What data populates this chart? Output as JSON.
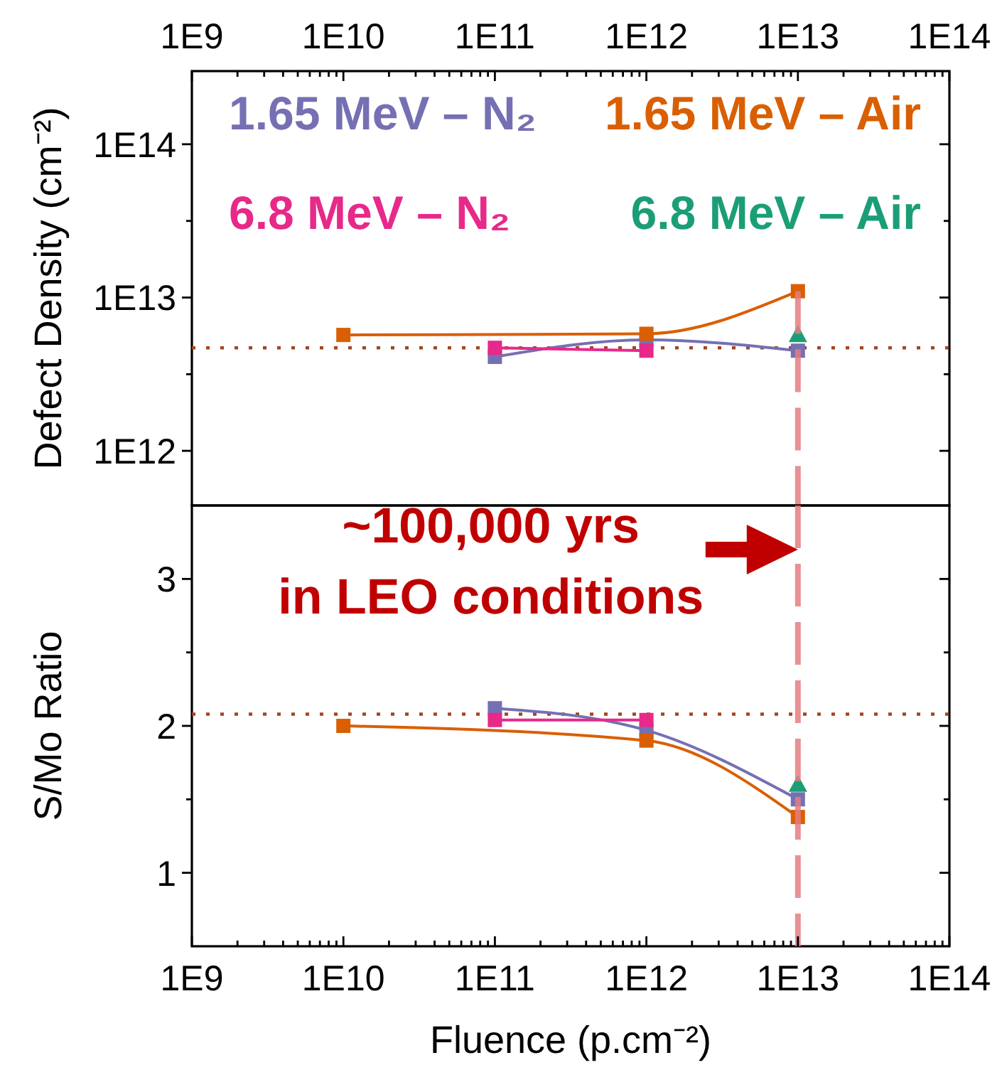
{
  "chart_data": [
    {
      "type": "line",
      "ylabel": "Defect Density (cm⁻²)",
      "log": "xy",
      "xlim": [
        1000000000.0,
        100000000000000.0
      ],
      "xticks": [
        {
          "value": 1000000000.0,
          "label": "1E9"
        },
        {
          "value": 2000000000.0,
          "label": null
        },
        {
          "value": 3000000000.0,
          "label": null
        },
        {
          "value": 4000000000.0,
          "label": null
        },
        {
          "value": 5000000000.0,
          "label": null
        },
        {
          "value": 6000000000.0,
          "label": null
        },
        {
          "value": 7000000000.0,
          "label": null
        },
        {
          "value": 8000000000.0,
          "label": null
        },
        {
          "value": 9000000000.0,
          "label": null
        },
        {
          "value": 10000000000.0,
          "label": "1E10"
        },
        {
          "value": 20000000000.0,
          "label": null
        },
        {
          "value": 30000000000.0,
          "label": null
        },
        {
          "value": 40000000000.0,
          "label": null
        },
        {
          "value": 50000000000.0,
          "label": null
        },
        {
          "value": 60000000000.0,
          "label": null
        },
        {
          "value": 70000000000.0,
          "label": null
        },
        {
          "value": 80000000000.0,
          "label": null
        },
        {
          "value": 90000000000.0,
          "label": null
        },
        {
          "value": 100000000000.0,
          "label": "1E11"
        },
        {
          "value": 200000000000.0,
          "label": null
        },
        {
          "value": 300000000000.0,
          "label": null
        },
        {
          "value": 400000000000.0,
          "label": null
        },
        {
          "value": 500000000000.0,
          "label": null
        },
        {
          "value": 600000000000.0,
          "label": null
        },
        {
          "value": 700000000000.0,
          "label": null
        },
        {
          "value": 800000000000.0,
          "label": null
        },
        {
          "value": 900000000000.0,
          "label": null
        },
        {
          "value": 1000000000000.0,
          "label": "1E12"
        },
        {
          "value": 2000000000000.0,
          "label": null
        },
        {
          "value": 3000000000000.0,
          "label": null
        },
        {
          "value": 4000000000000.0,
          "label": null
        },
        {
          "value": 5000000000000.0,
          "label": null
        },
        {
          "value": 6000000000000.0,
          "label": null
        },
        {
          "value": 7000000000000.0,
          "label": null
        },
        {
          "value": 8000000000000.0,
          "label": null
        },
        {
          "value": 9000000000000.0,
          "label": null
        },
        {
          "value": 10000000000000.0,
          "label": "1E13"
        },
        {
          "value": 20000000000000.0,
          "label": null
        },
        {
          "value": 30000000000000.0,
          "label": null
        },
        {
          "value": 40000000000000.0,
          "label": null
        },
        {
          "value": 50000000000000.0,
          "label": null
        },
        {
          "value": 60000000000000.0,
          "label": null
        },
        {
          "value": 70000000000000.0,
          "label": null
        },
        {
          "value": 80000000000000.0,
          "label": null
        },
        {
          "value": 90000000000000.0,
          "label": null
        },
        {
          "value": 100000000000000.0,
          "label": "1E14"
        }
      ],
      "ylim": [
        440000000000.0,
        300000000000000.0
      ],
      "yticks": [
        {
          "value": 1000000000000.0,
          "label": "1E12"
        },
        {
          "value": 3160000000000.0,
          "label": null
        },
        {
          "value": 10000000000000.0,
          "label": "1E13"
        },
        {
          "value": 31600000000000.0,
          "label": null
        },
        {
          "value": 100000000000000.0,
          "label": "1E14"
        }
      ],
      "legend": "top",
      "marker": "square",
      "series": [
        {
          "name": "1.65 MeV – N₂",
          "color": "#7570b3",
          "x": [
            100000000000.0,
            1000000000000.0,
            10000000000000.0
          ],
          "values": [
            4100000000000.0,
            5300000000000.0,
            4500000000000.0
          ]
        },
        {
          "name": "1.65 MeV – Air",
          "color": "#d95f02",
          "x": [
            10000000000.0,
            1000000000000.0,
            10000000000000.0
          ],
          "values": [
            5700000000000.0,
            5800000000000.0,
            11000000000000.0
          ]
        },
        {
          "name": "6.8 MeV – N₂",
          "color": "#e7298a",
          "x": [
            100000000000.0,
            1000000000000.0
          ],
          "values": [
            4700000000000.0,
            4500000000000.0
          ]
        },
        {
          "name": "6.8 MeV – Air",
          "color": "#1b9e77",
          "type": "scatter",
          "marker": "triangle",
          "x": [
            10000000000000.0
          ],
          "values": [
            5700000000000.0
          ]
        }
      ],
      "ref_lines": [
        {
          "axis": "y",
          "value": 4700000000000.0,
          "color": "#a0461e",
          "line_style": "dotted"
        },
        {
          "axis": "x",
          "value": 10000000000000.0,
          "color": "#e47c80",
          "line_style": "dashed"
        }
      ]
    },
    {
      "type": "line",
      "ylabel": "S/Mo Ratio",
      "xlabel": "Fluence (p.cm⁻²)",
      "log": "x",
      "xlim": [
        1000000000.0,
        100000000000000.0
      ],
      "xticks": [
        {
          "value": 1000000000.0,
          "label": "1E9"
        },
        {
          "value": 2000000000.0,
          "label": null
        },
        {
          "value": 3000000000.0,
          "label": null
        },
        {
          "value": 4000000000.0,
          "label": null
        },
        {
          "value": 5000000000.0,
          "label": null
        },
        {
          "value": 6000000000.0,
          "label": null
        },
        {
          "value": 7000000000.0,
          "label": null
        },
        {
          "value": 8000000000.0,
          "label": null
        },
        {
          "value": 9000000000.0,
          "label": null
        },
        {
          "value": 10000000000.0,
          "label": "1E10"
        },
        {
          "value": 20000000000.0,
          "label": null
        },
        {
          "value": 30000000000.0,
          "label": null
        },
        {
          "value": 40000000000.0,
          "label": null
        },
        {
          "value": 50000000000.0,
          "label": null
        },
        {
          "value": 60000000000.0,
          "label": null
        },
        {
          "value": 70000000000.0,
          "label": null
        },
        {
          "value": 80000000000.0,
          "label": null
        },
        {
          "value": 90000000000.0,
          "label": null
        },
        {
          "value": 100000000000.0,
          "label": "1E11"
        },
        {
          "value": 200000000000.0,
          "label": null
        },
        {
          "value": 300000000000.0,
          "label": null
        },
        {
          "value": 400000000000.0,
          "label": null
        },
        {
          "value": 500000000000.0,
          "label": null
        },
        {
          "value": 600000000000.0,
          "label": null
        },
        {
          "value": 700000000000.0,
          "label": null
        },
        {
          "value": 800000000000.0,
          "label": null
        },
        {
          "value": 900000000000.0,
          "label": null
        },
        {
          "value": 1000000000000.0,
          "label": "1E12"
        },
        {
          "value": 2000000000000.0,
          "label": null
        },
        {
          "value": 3000000000000.0,
          "label": null
        },
        {
          "value": 4000000000000.0,
          "label": null
        },
        {
          "value": 5000000000000.0,
          "label": null
        },
        {
          "value": 6000000000000.0,
          "label": null
        },
        {
          "value": 7000000000000.0,
          "label": null
        },
        {
          "value": 8000000000000.0,
          "label": null
        },
        {
          "value": 9000000000000.0,
          "label": null
        },
        {
          "value": 10000000000000.0,
          "label": "1E13"
        },
        {
          "value": 20000000000000.0,
          "label": null
        },
        {
          "value": 30000000000000.0,
          "label": null
        },
        {
          "value": 40000000000000.0,
          "label": null
        },
        {
          "value": 50000000000000.0,
          "label": null
        },
        {
          "value": 60000000000000.0,
          "label": null
        },
        {
          "value": 70000000000000.0,
          "label": null
        },
        {
          "value": 80000000000000.0,
          "label": null
        },
        {
          "value": 90000000000000.0,
          "label": null
        },
        {
          "value": 100000000000000.0,
          "label": "1E14"
        }
      ],
      "ylim": [
        0.5,
        3.5
      ],
      "yticks": [
        1,
        {
          "value": 1.5,
          "label": null
        },
        2,
        {
          "value": 2.5,
          "label": null
        },
        3
      ],
      "marker": "square",
      "series": [
        {
          "color": "#7570b3",
          "x": [
            100000000000.0,
            1000000000000.0,
            10000000000000.0
          ],
          "values": [
            2.12,
            1.97,
            1.5
          ]
        },
        {
          "color": "#d95f02",
          "x": [
            10000000000.0,
            1000000000000.0,
            10000000000000.0
          ],
          "values": [
            2.0,
            1.9,
            1.38
          ]
        },
        {
          "color": "#e7298a",
          "x": [
            100000000000.0,
            1000000000000.0
          ],
          "values": [
            2.04,
            2.04
          ]
        },
        {
          "color": "#1b9e77",
          "type": "scatter",
          "marker": "triangle",
          "x": [
            10000000000000.0
          ],
          "values": [
            1.6
          ]
        }
      ],
      "ref_lines": [
        {
          "axis": "y",
          "value": 2.08,
          "color": "#a0461e",
          "line_style": "dotted"
        },
        {
          "axis": "x",
          "value": 10000000000000.0,
          "color": "#e47c80",
          "line_style": "dashed"
        }
      ],
      "annotations": [
        {
          "text": "~100,000 yrs\nin LEO conditions",
          "x": 10000000000000.0,
          "y": 3.2
        }
      ]
    }
  ]
}
